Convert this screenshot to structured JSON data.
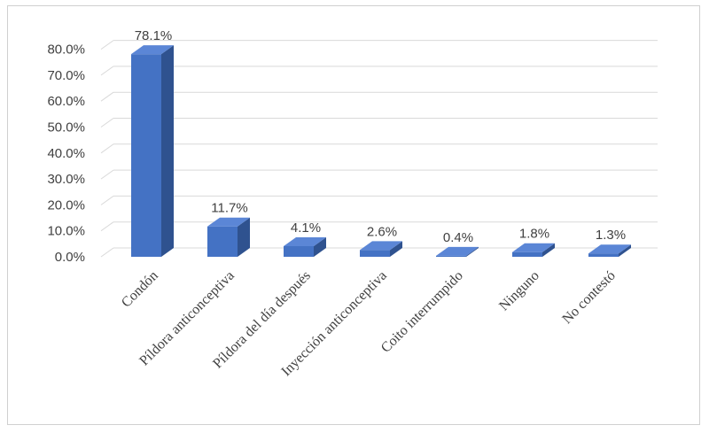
{
  "chart_data": {
    "type": "bar",
    "style": "3d-column",
    "categories": [
      "Condón",
      "Píldora anticonceptiva",
      "Píldora del día después",
      "Inyección anticonceptiva",
      "Coito interrumpido",
      "Ninguno",
      "No contestó"
    ],
    "values": [
      78.1,
      11.7,
      4.1,
      2.6,
      0.4,
      1.8,
      1.3
    ],
    "data_labels": [
      "78.1%",
      "11.7%",
      "4.1%",
      "2.6%",
      "0.4%",
      "1.8%",
      "1.3%"
    ],
    "y_ticks": [
      "0.0%",
      "10.0%",
      "20.0%",
      "30.0%",
      "40.0%",
      "50.0%",
      "60.0%",
      "70.0%",
      "80.0%"
    ],
    "ylim": [
      0,
      85
    ],
    "title": "",
    "xlabel": "",
    "ylabel": "",
    "grid": true,
    "legend": "none",
    "colors": {
      "bar_front": "#4472c4",
      "bar_side": "#2f528f",
      "bar_top": "#5b86d6",
      "grid": "#d9d9d9"
    }
  }
}
